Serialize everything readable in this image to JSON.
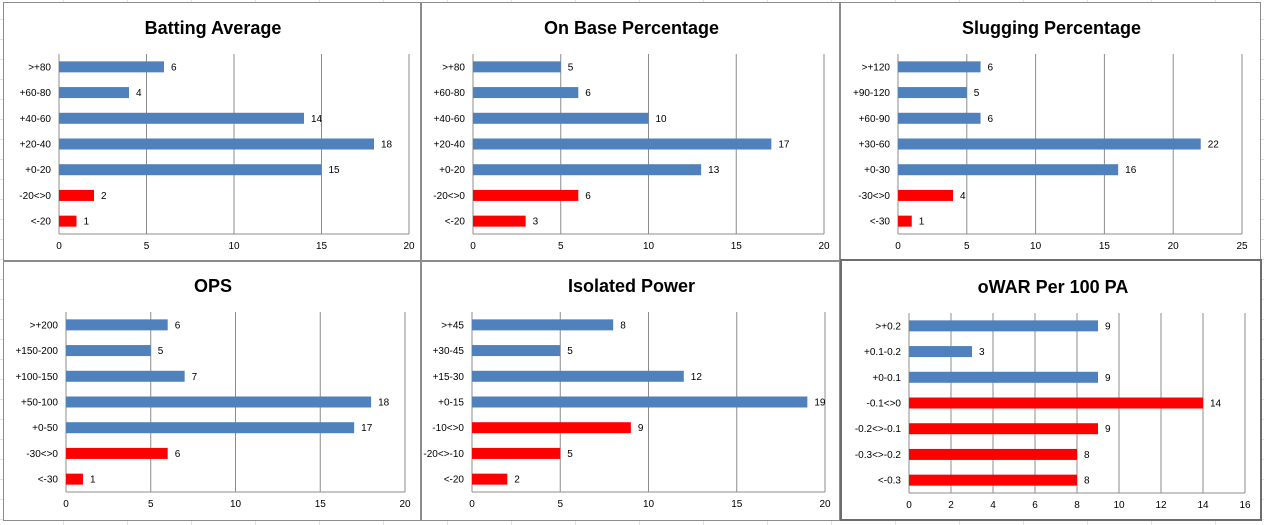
{
  "colors": {
    "positive": "#4f81bd",
    "negative": "#ff0000",
    "grid": "#8c8c8c"
  },
  "chart_data": [
    {
      "type": "bar",
      "orientation": "horizontal",
      "title": "Batting Average",
      "categories": [
        "<-20",
        "-20<>0",
        "+0-20",
        "+20-40",
        "+40-60",
        "+60-80",
        ">+80"
      ],
      "values": [
        1,
        2,
        15,
        18,
        14,
        4,
        6
      ],
      "negative_count": 2,
      "xlim": [
        0,
        20
      ],
      "ticks": [
        0,
        5,
        10,
        15,
        20
      ],
      "grid": true,
      "legend": "none"
    },
    {
      "type": "bar",
      "orientation": "horizontal",
      "title": "On Base Percentage",
      "categories": [
        "<-20",
        "-20<>0",
        "+0-20",
        "+20-40",
        "+40-60",
        "+60-80",
        ">+80"
      ],
      "values": [
        3,
        6,
        13,
        17,
        10,
        6,
        5
      ],
      "negative_count": 2,
      "xlim": [
        0,
        20
      ],
      "ticks": [
        0,
        5,
        10,
        15,
        20
      ],
      "grid": true,
      "legend": "none"
    },
    {
      "type": "bar",
      "orientation": "horizontal",
      "title": "Slugging Percentage",
      "categories": [
        "<-30",
        "-30<>0",
        "+0-30",
        "+30-60",
        "+60-90",
        "+90-120",
        ">+120"
      ],
      "values": [
        1,
        4,
        16,
        22,
        6,
        5,
        6
      ],
      "negative_count": 2,
      "xlim": [
        0,
        25
      ],
      "ticks": [
        0,
        5,
        10,
        15,
        20,
        25
      ],
      "grid": true,
      "legend": "none"
    },
    {
      "type": "bar",
      "orientation": "horizontal",
      "title": "OPS",
      "categories": [
        "<-30",
        "-30<>0",
        "+0-50",
        "+50-100",
        "+100-150",
        "+150-200",
        ">+200"
      ],
      "values": [
        1,
        6,
        17,
        18,
        7,
        5,
        6
      ],
      "negative_count": 2,
      "xlim": [
        0,
        20
      ],
      "ticks": [
        0,
        5,
        10,
        15,
        20
      ],
      "grid": true,
      "legend": "none"
    },
    {
      "type": "bar",
      "orientation": "horizontal",
      "title": "Isolated Power",
      "categories": [
        "<-20",
        "-20<>-10",
        "-10<>0",
        "+0-15",
        "+15-30",
        "+30-45",
        ">+45"
      ],
      "values": [
        2,
        5,
        9,
        19,
        12,
        5,
        8
      ],
      "negative_count": 3,
      "xlim": [
        0,
        20
      ],
      "ticks": [
        0,
        5,
        10,
        15,
        20
      ],
      "grid": true,
      "legend": "none"
    },
    {
      "type": "bar",
      "orientation": "horizontal",
      "title": "oWAR Per 100 PA",
      "categories": [
        "<-0.3",
        "-0.3<>-0.2",
        "-0.2<>-0.1",
        "-0.1<>0",
        "+0-0.1",
        "+0.1-0.2",
        ">+0.2"
      ],
      "values": [
        8,
        8,
        9,
        14,
        9,
        3,
        9
      ],
      "negative_count": 4,
      "xlim": [
        0,
        16
      ],
      "ticks": [
        0,
        2,
        4,
        6,
        8,
        10,
        12,
        14,
        16
      ],
      "grid": true,
      "legend": "none"
    }
  ]
}
